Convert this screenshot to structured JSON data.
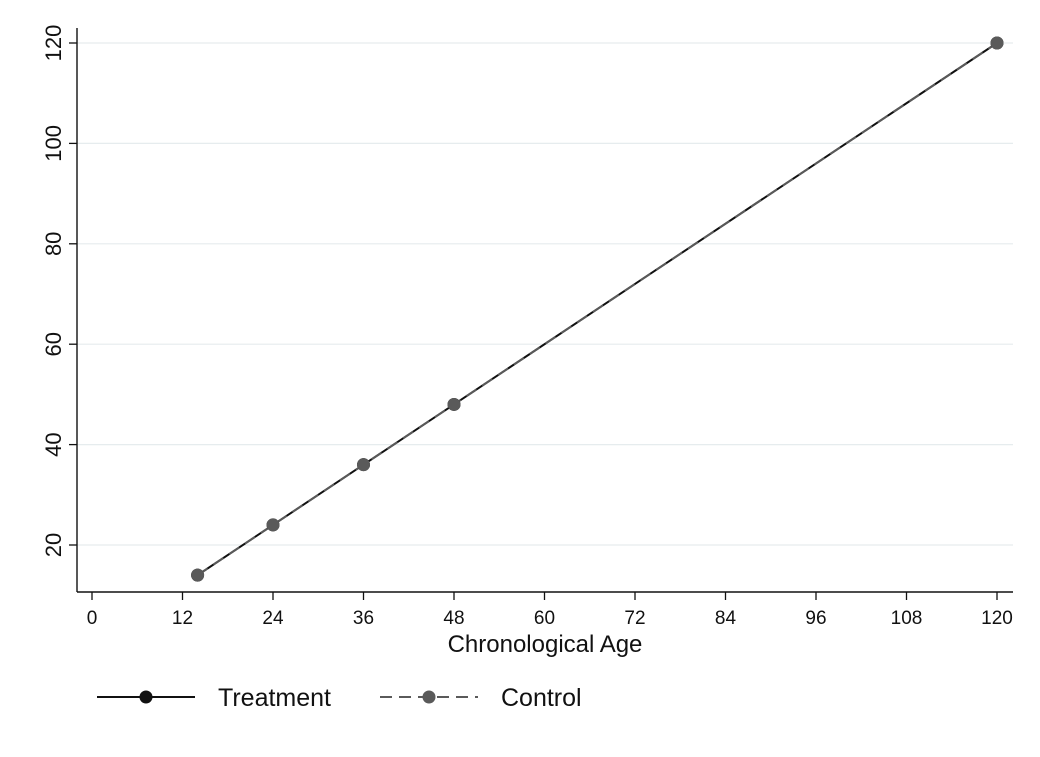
{
  "chart_data": {
    "type": "line",
    "title": "",
    "xlabel": "Chronological Age",
    "ylabel": "",
    "xlim": [
      -3,
      122
    ],
    "ylim": [
      10,
      124
    ],
    "x_ticks": [
      0,
      12,
      24,
      36,
      48,
      60,
      72,
      84,
      96,
      108,
      120
    ],
    "y_ticks": [
      20,
      40,
      60,
      80,
      100,
      120
    ],
    "grid": true,
    "legend_position": "bottom",
    "series": [
      {
        "name": "Treatment",
        "style": "solid",
        "color": "#111111",
        "x": [
          14,
          24,
          36,
          48,
          120
        ],
        "y": [
          14,
          24,
          36,
          48,
          120
        ]
      },
      {
        "name": "Control",
        "style": "dashed",
        "color": "#5a5a5a",
        "x": [
          14,
          24,
          36,
          48,
          120
        ],
        "y": [
          14,
          24,
          36,
          48,
          120
        ]
      }
    ]
  }
}
